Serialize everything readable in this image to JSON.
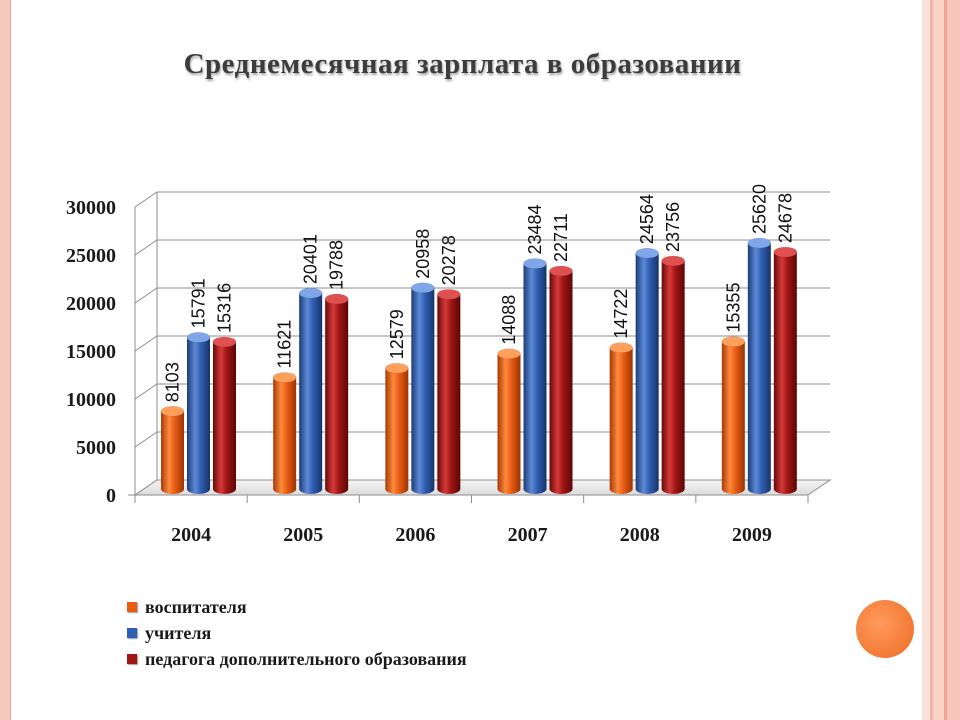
{
  "title": "Среднемесячная зарплата в образовании",
  "colors": {
    "series_1": "#e85c14",
    "series_2": "#2f5fb2",
    "series_3": "#a01515",
    "accent_circle": "#f37a35"
  },
  "chart_data": {
    "type": "bar",
    "title": "Среднемесячная зарплата в образовании",
    "categories": [
      "2004",
      "2005",
      "2006",
      "2007",
      "2008",
      "2009"
    ],
    "series": [
      {
        "name": "воспитателя",
        "values": [
          8103,
          11621,
          12579,
          14088,
          14722,
          15355
        ]
      },
      {
        "name": "учителя",
        "values": [
          15791,
          20401,
          20958,
          23484,
          24564,
          25620
        ]
      },
      {
        "name": "педагога дополнительного образования",
        "values": [
          15316,
          19788,
          20278,
          22711,
          23756,
          24678
        ]
      }
    ],
    "y_ticks": [
      "0",
      "5000",
      "10000",
      "15000",
      "20000",
      "25000",
      "30000"
    ],
    "ylim": [
      0,
      30000
    ],
    "grid": true,
    "legend_position": "bottom-left",
    "style": "3d-cylinder"
  }
}
